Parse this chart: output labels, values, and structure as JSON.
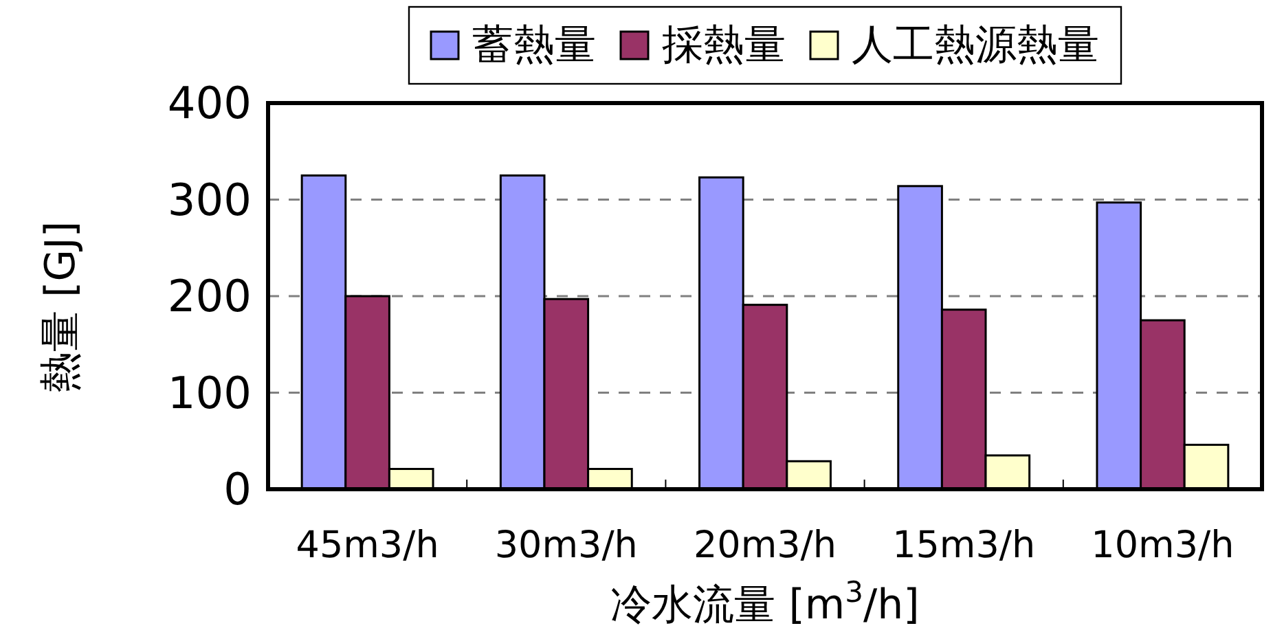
{
  "chart_data": {
    "type": "bar",
    "categories": [
      "45m3/h",
      "30m3/h",
      "20m3/h",
      "15m3/h",
      "10m3/h"
    ],
    "series": [
      {
        "name": "蓄熱量",
        "color": "#9999ff",
        "values": [
          325,
          325,
          323,
          314,
          297
        ]
      },
      {
        "name": "採熱量",
        "color": "#993366",
        "values": [
          200,
          197,
          191,
          186,
          175
        ]
      },
      {
        "name": "人工熱源熱量",
        "color": "#ffffcc",
        "values": [
          21,
          21,
          29,
          35,
          46
        ]
      }
    ],
    "xlabel": "冷水流量 [m$^{3}$/h]",
    "ylabel": "熱量 [GJ]",
    "ylim": [
      0,
      400
    ],
    "yticks": [
      0,
      100,
      200,
      300,
      400
    ],
    "grid": "y",
    "legend": "top"
  }
}
